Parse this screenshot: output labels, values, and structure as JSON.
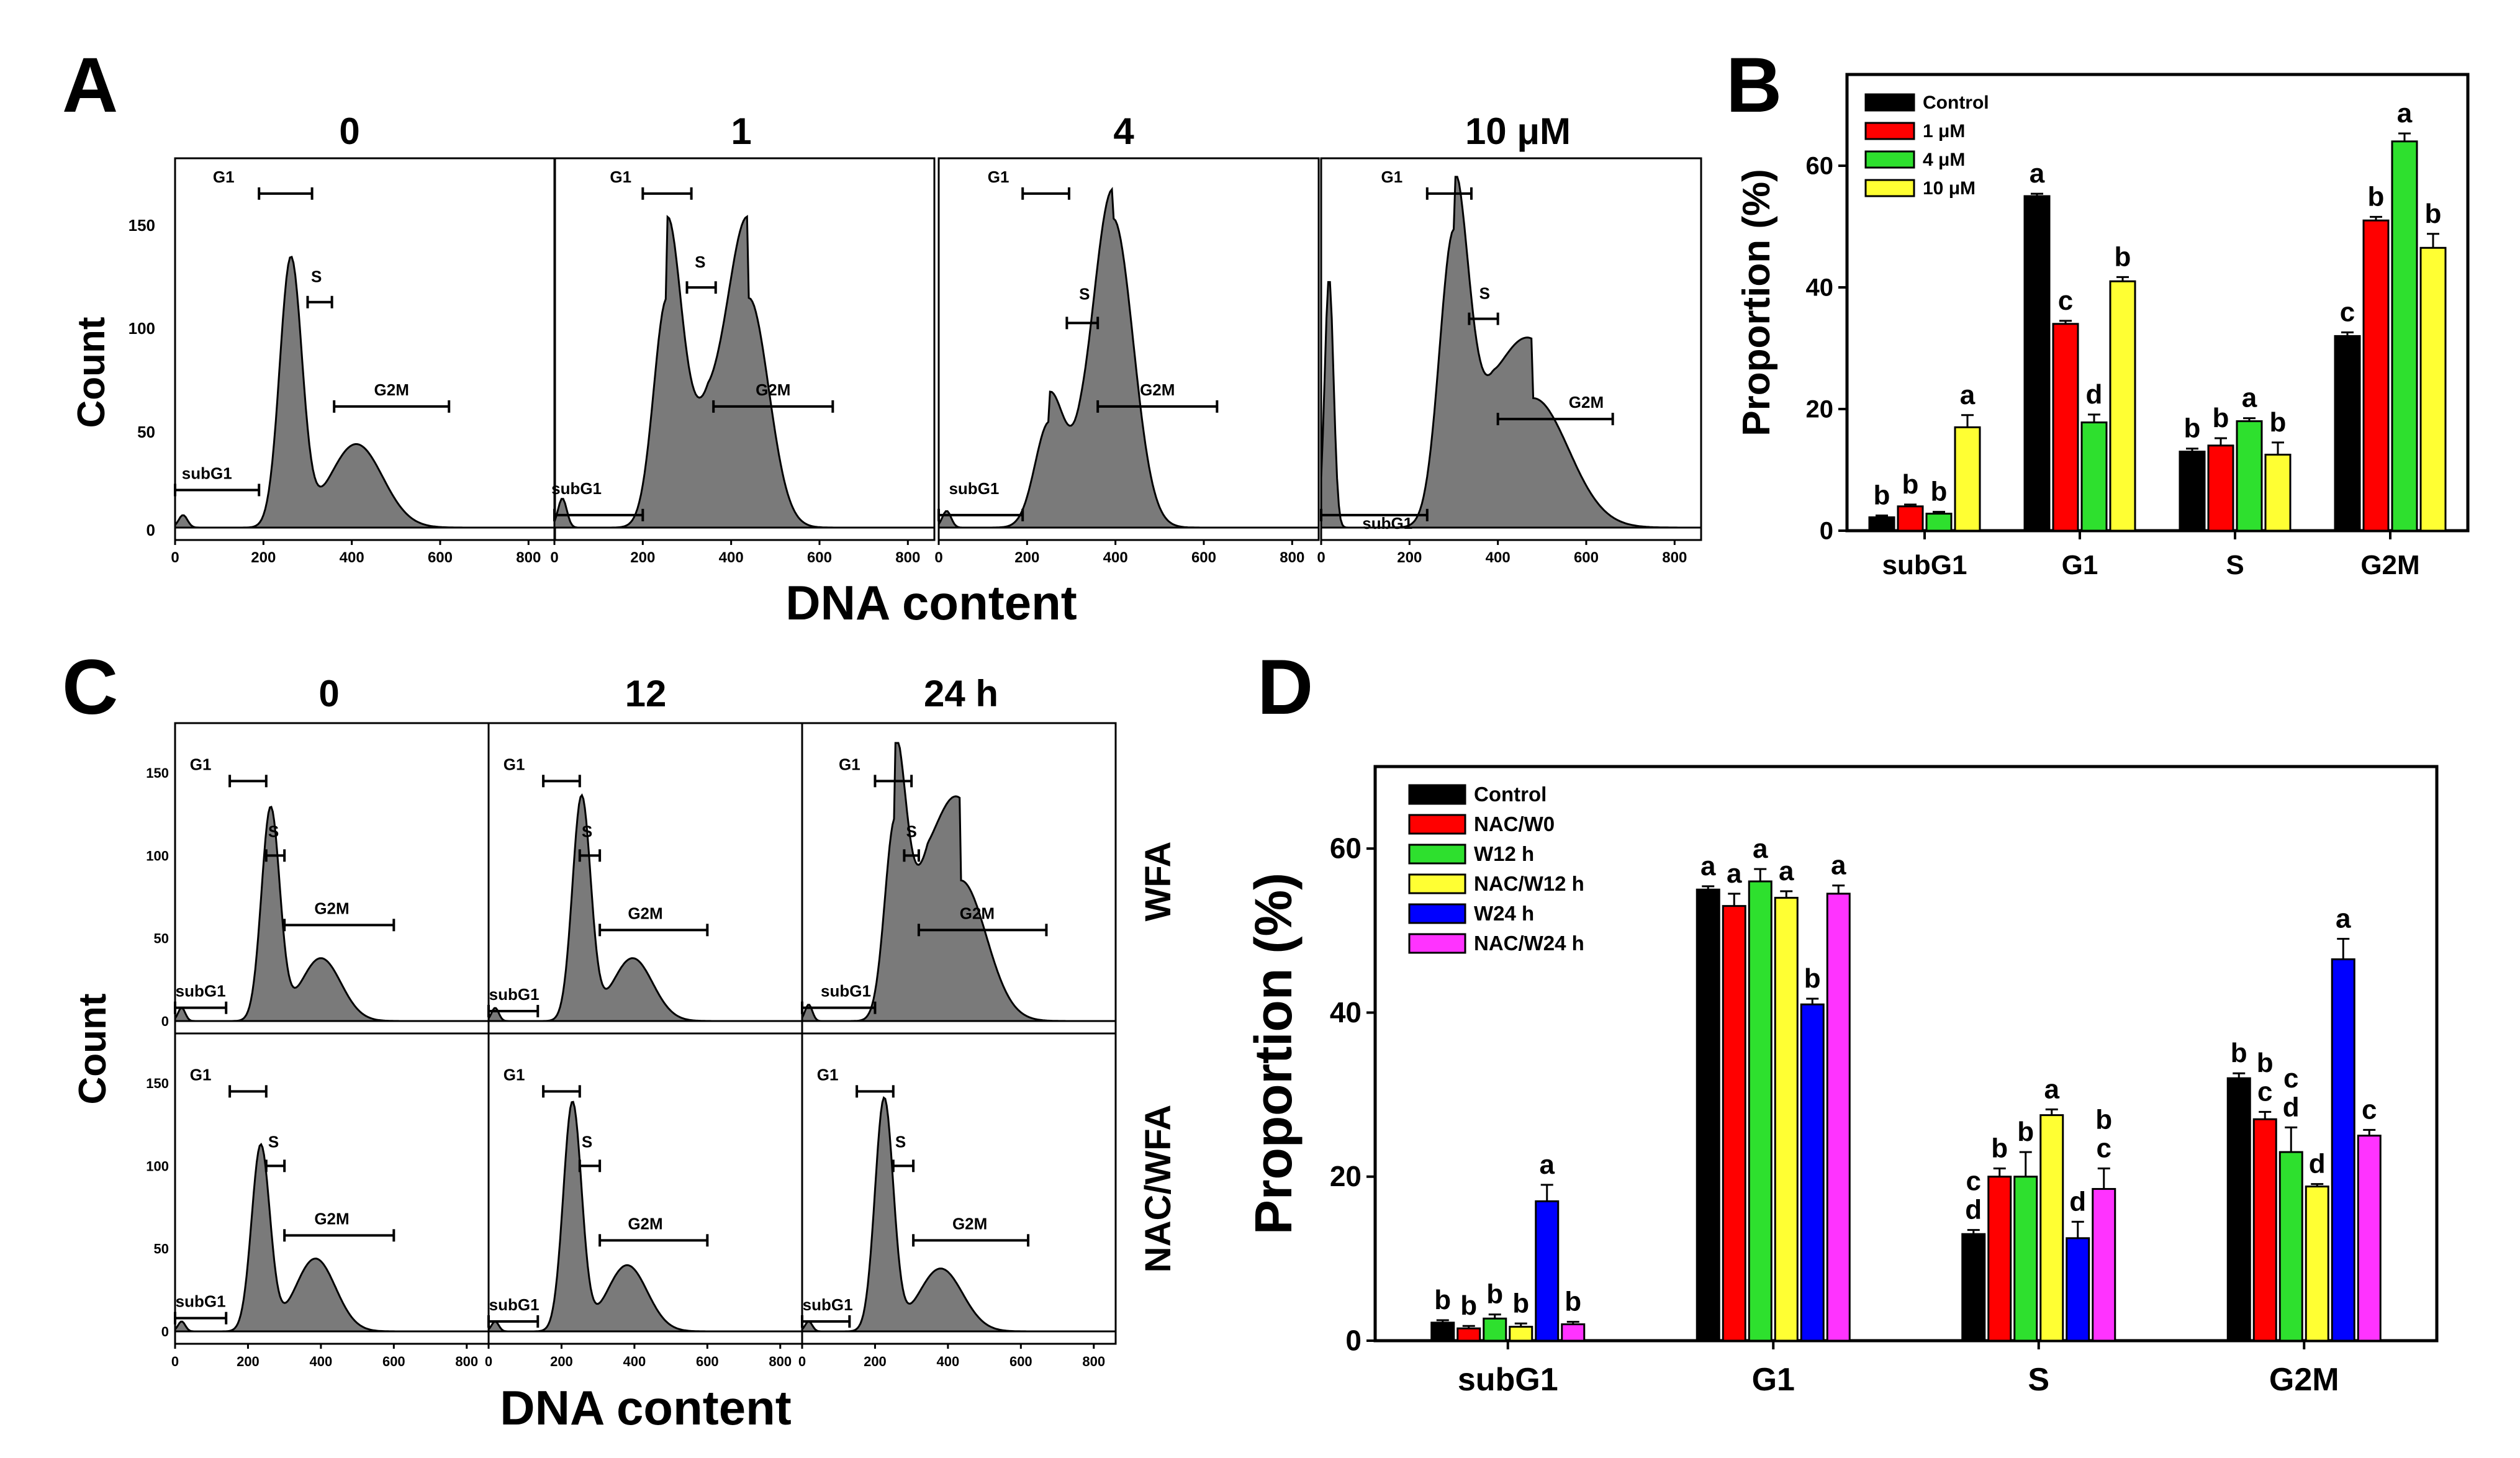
{
  "panel_letters": [
    "A",
    "B",
    "C",
    "D"
  ],
  "panel_a": {
    "columns": [
      "0",
      "1",
      "4",
      "10 μM"
    ],
    "ylabel": "Count",
    "xlabel": "DNA content",
    "yticks": [
      "0",
      "50",
      "100",
      "150"
    ],
    "xticks": [
      "0",
      "200",
      "400",
      "600",
      "800"
    ],
    "gate_labels": [
      "subG1",
      "G1",
      "S",
      "G2M"
    ]
  },
  "panel_c": {
    "columns": [
      "0",
      "12",
      "24 h"
    ],
    "rows": [
      "WFA",
      "NAC/WFA"
    ],
    "ylabel": "Count",
    "xlabel": "DNA content",
    "yticks": [
      "0",
      "50",
      "100",
      "150"
    ],
    "xticks": [
      "0",
      "200",
      "400",
      "600",
      "800"
    ],
    "gate_labels": [
      "subG1",
      "G1",
      "S",
      "G2M"
    ]
  },
  "colors": {
    "black": "#000000",
    "red": "#ff0000",
    "green": "#2ee02e",
    "yellow": "#ffff33",
    "blue": "#0000ff",
    "magenta": "#ff33ff",
    "histogram_fill": "#7a7a7a"
  },
  "chart_data": [
    {
      "id": "B",
      "type": "bar",
      "ylabel": "Proportion (%)",
      "ylim": [
        0,
        75
      ],
      "yticks": [
        0,
        20,
        40,
        60
      ],
      "categories": [
        "subG1",
        "G1",
        "S",
        "G2M"
      ],
      "legend_position": "top-left",
      "series": [
        {
          "name": "Control",
          "color": "#000000",
          "values": [
            2.2,
            55,
            13,
            32
          ],
          "errors": [
            0.3,
            0.4,
            0.5,
            0.6
          ],
          "letters": [
            "b",
            "a",
            "b",
            "c"
          ]
        },
        {
          "name": "1 μM",
          "color": "#ff0000",
          "values": [
            4,
            34,
            14,
            51
          ],
          "errors": [
            0.3,
            0.5,
            1.2,
            0.6
          ],
          "letters": [
            "b",
            "c",
            "b",
            "b"
          ]
        },
        {
          "name": "4 μM",
          "color": "#2ee02e",
          "values": [
            2.8,
            17.8,
            18,
            64
          ],
          "errors": [
            0.3,
            1.3,
            0.5,
            1.3
          ],
          "letters": [
            "b",
            "d",
            "a",
            "a"
          ]
        },
        {
          "name": "10 μM",
          "color": "#ffff33",
          "values": [
            17,
            41,
            12.5,
            46.5
          ],
          "errors": [
            2,
            0.7,
            2,
            2.3
          ],
          "letters": [
            "a",
            "b",
            "b",
            "b"
          ]
        }
      ]
    },
    {
      "id": "D",
      "type": "bar",
      "ylabel": "Proportion (%)",
      "ylim": [
        0,
        70
      ],
      "yticks": [
        0,
        20,
        40,
        60
      ],
      "categories": [
        "subG1",
        "G1",
        "S",
        "G2M"
      ],
      "legend_position": "top-left",
      "series": [
        {
          "name": "Control",
          "color": "#000000",
          "values": [
            2.2,
            55,
            13,
            32
          ],
          "errors": [
            0.3,
            0.4,
            0.5,
            0.6
          ],
          "letters": [
            "b",
            "a",
            "c\nd",
            "b"
          ]
        },
        {
          "name": "NAC/W0",
          "color": "#ff0000",
          "values": [
            1.5,
            53,
            20,
            27
          ],
          "errors": [
            0.3,
            1.5,
            1,
            0.9
          ],
          "letters": [
            "b",
            "a",
            "b",
            "b\nc"
          ]
        },
        {
          "name": "W12 h",
          "color": "#2ee02e",
          "values": [
            2.7,
            56,
            20,
            23
          ],
          "errors": [
            0.5,
            1.5,
            3,
            3
          ],
          "letters": [
            "b",
            "a",
            "b",
            "c\nd"
          ]
        },
        {
          "name": "NAC/W12 h",
          "color": "#ffff33",
          "values": [
            1.7,
            54,
            27.5,
            18.8
          ],
          "errors": [
            0.4,
            0.8,
            0.7,
            0.3
          ],
          "letters": [
            "b",
            "a",
            "a",
            "d"
          ]
        },
        {
          "name": "W24 h",
          "color": "#0000ff",
          "values": [
            17,
            41,
            12.5,
            46.5
          ],
          "errors": [
            2,
            0.7,
            2,
            2.5
          ],
          "letters": [
            "a",
            "b",
            "d",
            "a"
          ]
        },
        {
          "name": "NAC/W24 h",
          "color": "#ff33ff",
          "values": [
            2,
            54.5,
            18.5,
            25
          ],
          "errors": [
            0.3,
            1,
            2.5,
            0.7
          ],
          "letters": [
            "b",
            "a",
            "b\nc",
            "c"
          ]
        }
      ]
    }
  ]
}
